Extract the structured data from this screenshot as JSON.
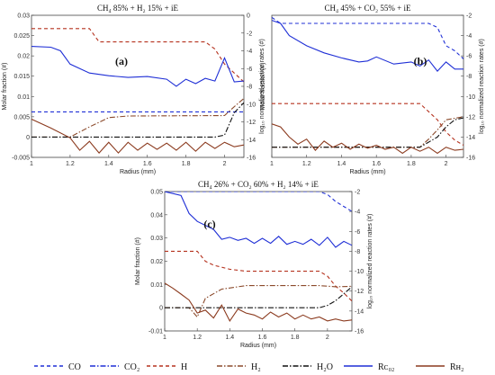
{
  "chart_data": [
    {
      "type": "line",
      "id": "a",
      "panel_label": "(a)",
      "title": "CH₄ 85% + H₂ 15% + iE",
      "xlabel": "Radius (mm)",
      "ylabel": "Molar fraction (#)",
      "y2label": "log₁₀ normalized reaction rates (#)",
      "xlim": [
        1,
        2.1
      ],
      "ylim": [
        -0.005,
        0.03
      ],
      "y2lim": [
        -16,
        0
      ],
      "xticks": [
        "1",
        "1.2",
        "1.4",
        "1.6",
        "1.8",
        "2"
      ],
      "yticks": [
        "0.03",
        "0.025",
        "0.02",
        "0.015",
        "0.01",
        "0.005",
        "0",
        "-0.005"
      ],
      "y2ticks": [
        "0",
        "-2",
        "-4",
        "-6",
        "-8",
        "-10",
        "-12",
        "-14",
        "-16"
      ],
      "series": [
        {
          "key": "CO",
          "axis": "left",
          "points": [
            [
              1,
              0.0062
            ],
            [
              2.1,
              0.0062
            ]
          ]
        },
        {
          "key": "H",
          "axis": "right",
          "points": [
            [
              1,
              -1.5
            ],
            [
              1.3,
              -1.5
            ],
            [
              1.35,
              -3.0
            ],
            [
              1.9,
              -3.0
            ],
            [
              1.95,
              -3.8
            ],
            [
              2.0,
              -5.5
            ],
            [
              2.1,
              -7.5
            ]
          ]
        },
        {
          "key": "H2",
          "axis": "left",
          "points": [
            [
              1,
              0
            ],
            [
              1.2,
              0
            ],
            [
              1.3,
              0.0025
            ],
            [
              1.4,
              0.0048
            ],
            [
              1.5,
              0.0052
            ],
            [
              2.0,
              0.0053
            ],
            [
              2.05,
              0.0075
            ],
            [
              2.1,
              0.0095
            ]
          ]
        },
        {
          "key": "H2O",
          "axis": "left",
          "points": [
            [
              1,
              0
            ],
            [
              1.95,
              0
            ],
            [
              2.0,
              0.0005
            ],
            [
              2.05,
              0.006
            ],
            [
              2.1,
              0.0085
            ]
          ]
        },
        {
          "key": "RCO2",
          "axis": "right",
          "points": [
            [
              1,
              -3.5
            ],
            [
              1.1,
              -3.6
            ],
            [
              1.15,
              -4.0
            ],
            [
              1.2,
              -5.5
            ],
            [
              1.3,
              -6.5
            ],
            [
              1.4,
              -6.8
            ],
            [
              1.5,
              -7.0
            ],
            [
              1.6,
              -6.9
            ],
            [
              1.7,
              -7.2
            ],
            [
              1.75,
              -8.0
            ],
            [
              1.8,
              -7.2
            ],
            [
              1.85,
              -7.7
            ],
            [
              1.9,
              -7.1
            ],
            [
              1.95,
              -7.4
            ],
            [
              2.0,
              -4.8
            ],
            [
              2.05,
              -7.5
            ],
            [
              2.1,
              -7.4
            ]
          ]
        },
        {
          "key": "RH2",
          "axis": "right",
          "points": [
            [
              1,
              -11.7
            ],
            [
              1.1,
              -12.7
            ],
            [
              1.2,
              -13.8
            ],
            [
              1.25,
              -15.2
            ],
            [
              1.3,
              -14.2
            ],
            [
              1.35,
              -15.5
            ],
            [
              1.4,
              -14.3
            ],
            [
              1.45,
              -15.5
            ],
            [
              1.5,
              -14.3
            ],
            [
              1.55,
              -15.2
            ],
            [
              1.6,
              -14.4
            ],
            [
              1.65,
              -15.1
            ],
            [
              1.7,
              -14.4
            ],
            [
              1.75,
              -15.2
            ],
            [
              1.8,
              -14.3
            ],
            [
              1.85,
              -15.3
            ],
            [
              1.9,
              -14.3
            ],
            [
              1.95,
              -15.0
            ],
            [
              2.0,
              -14.3
            ],
            [
              2.05,
              -14.8
            ],
            [
              2.1,
              -14.6
            ]
          ]
        }
      ]
    },
    {
      "type": "line",
      "id": "b",
      "panel_label": "(b)",
      "title": "CH₄ 45% + CO₂ 55% + iE",
      "xlabel": "Radius (mm)",
      "ylabel": "Molar fraction (#)",
      "y2label": "log₁₀ normalized reaction rates (#)",
      "xlim": [
        1,
        2.1
      ],
      "ylim": [
        -0.002,
        0.08
      ],
      "y2lim": [
        -16,
        -2
      ],
      "xticks": [
        "1",
        "1.2",
        "1.4",
        "1.6",
        "1.8",
        "2"
      ],
      "yticks": [],
      "y2ticks": [
        "-2",
        "-4",
        "-6",
        "-8",
        "-10",
        "-12",
        "-14",
        "-16"
      ],
      "series": [
        {
          "key": "CO",
          "axis": "right",
          "points": [
            [
              1,
              -2.2
            ],
            [
              1.05,
              -2.8
            ],
            [
              1.9,
              -2.8
            ],
            [
              1.95,
              -3.2
            ],
            [
              2.0,
              -5.0
            ],
            [
              2.05,
              -5.5
            ],
            [
              2.1,
              -6.3
            ]
          ]
        },
        {
          "key": "H",
          "axis": "right",
          "points": [
            [
              1,
              -10.7
            ],
            [
              1.85,
              -10.7
            ],
            [
              1.9,
              -11.5
            ],
            [
              1.95,
              -12.3
            ],
            [
              2.0,
              -13.5
            ],
            [
              2.05,
              -14.3
            ],
            [
              2.1,
              -14.8
            ]
          ]
        },
        {
          "key": "H2",
          "axis": "right",
          "points": [
            [
              1,
              -15.0
            ],
            [
              1.85,
              -15.0
            ],
            [
              1.9,
              -14.2
            ],
            [
              1.95,
              -13.3
            ],
            [
              2.0,
              -12.3
            ],
            [
              2.1,
              -12.0
            ]
          ]
        },
        {
          "key": "H2O",
          "axis": "right",
          "points": [
            [
              1,
              -15.0
            ],
            [
              1.85,
              -15.0
            ],
            [
              1.95,
              -14.0
            ],
            [
              2.0,
              -13.0
            ],
            [
              2.05,
              -12.3
            ],
            [
              2.1,
              -12.1
            ]
          ]
        },
        {
          "key": "RCO2",
          "axis": "right",
          "points": [
            [
              1,
              -2.5
            ],
            [
              1.05,
              -2.8
            ],
            [
              1.1,
              -4.0
            ],
            [
              1.2,
              -5.0
            ],
            [
              1.3,
              -5.7
            ],
            [
              1.4,
              -6.2
            ],
            [
              1.5,
              -6.6
            ],
            [
              1.55,
              -6.5
            ],
            [
              1.6,
              -6.1
            ],
            [
              1.7,
              -6.8
            ],
            [
              1.8,
              -6.6
            ],
            [
              1.85,
              -7.0
            ],
            [
              1.9,
              -6.4
            ],
            [
              1.95,
              -7.5
            ],
            [
              2.0,
              -6.6
            ],
            [
              2.05,
              -7.3
            ],
            [
              2.1,
              -7.3
            ]
          ]
        },
        {
          "key": "RH2",
          "axis": "right",
          "points": [
            [
              1,
              -12.7
            ],
            [
              1.05,
              -13.0
            ],
            [
              1.1,
              -14.0
            ],
            [
              1.15,
              -14.7
            ],
            [
              1.2,
              -14.2
            ],
            [
              1.25,
              -15.3
            ],
            [
              1.3,
              -14.4
            ],
            [
              1.35,
              -15.0
            ],
            [
              1.4,
              -14.6
            ],
            [
              1.45,
              -15.2
            ],
            [
              1.5,
              -14.7
            ],
            [
              1.55,
              -15.1
            ],
            [
              1.6,
              -14.8
            ],
            [
              1.65,
              -15.2
            ],
            [
              1.7,
              -15.0
            ],
            [
              1.75,
              -15.6
            ],
            [
              1.8,
              -15.0
            ],
            [
              1.85,
              -15.4
            ],
            [
              1.9,
              -15.0
            ],
            [
              1.95,
              -15.6
            ],
            [
              2.0,
              -15.0
            ],
            [
              2.05,
              -15.3
            ],
            [
              2.1,
              -15.2
            ]
          ]
        }
      ]
    },
    {
      "type": "line",
      "id": "c",
      "panel_label": "(c)",
      "title": "CH₄ 26% + CO₂ 60% + H₂ 14% + iE",
      "xlabel": "Radius (mm)",
      "ylabel": "Molar fraction (#)",
      "y2label": "log₁₀ normalized reaction rates (#)",
      "xlim": [
        1,
        2.15
      ],
      "ylim": [
        -0.01,
        0.05
      ],
      "y2lim": [
        -16,
        -2
      ],
      "xticks": [
        "1",
        "1.2",
        "1.4",
        "1.6",
        "1.8",
        "2"
      ],
      "yticks": [
        "0.05",
        "0.04",
        "0.03",
        "0.02",
        "0.01",
        "0",
        "-0.01"
      ],
      "y2ticks": [
        "-2",
        "-4",
        "-6",
        "-8",
        "-10",
        "-12",
        "-14",
        "-16"
      ],
      "series": [
        {
          "key": "CO",
          "axis": "right",
          "points": [
            [
              1,
              -2.0
            ],
            [
              1.95,
              -2.0
            ],
            [
              2.0,
              -2.3
            ],
            [
              2.05,
              -3.0
            ],
            [
              2.1,
              -3.5
            ],
            [
              2.15,
              -4.0
            ]
          ]
        },
        {
          "key": "H",
          "axis": "right",
          "points": [
            [
              1,
              -8.0
            ],
            [
              1.2,
              -8.0
            ],
            [
              1.25,
              -9.0
            ],
            [
              1.3,
              -9.4
            ],
            [
              1.4,
              -9.8
            ],
            [
              1.5,
              -10.0
            ],
            [
              1.95,
              -10.0
            ],
            [
              2.0,
              -10.5
            ],
            [
              2.05,
              -11.5
            ],
            [
              2.1,
              -12.2
            ],
            [
              2.15,
              -13.0
            ]
          ]
        },
        {
          "key": "H2",
          "axis": "left",
          "points": [
            [
              1,
              0
            ],
            [
              1.15,
              0
            ],
            [
              1.2,
              -0.004
            ],
            [
              1.25,
              0.004
            ],
            [
              1.35,
              0.008
            ],
            [
              1.45,
              0.009
            ],
            [
              1.5,
              0.0095
            ],
            [
              1.95,
              0.0095
            ],
            [
              2.05,
              0.009
            ],
            [
              2.15,
              0.0092
            ]
          ]
        },
        {
          "key": "H2O",
          "axis": "left",
          "points": [
            [
              1,
              0
            ],
            [
              1.95,
              0
            ],
            [
              2.0,
              0.001
            ],
            [
              2.05,
              0.003
            ],
            [
              2.1,
              0.006
            ],
            [
              2.15,
              0.009
            ]
          ]
        },
        {
          "key": "RCO2",
          "axis": "right",
          "points": [
            [
              1,
              -2.0
            ],
            [
              1.1,
              -2.4
            ],
            [
              1.15,
              -4.2
            ],
            [
              1.2,
              -5.0
            ],
            [
              1.3,
              -5.8
            ],
            [
              1.35,
              -6.8
            ],
            [
              1.4,
              -6.6
            ],
            [
              1.45,
              -6.9
            ],
            [
              1.5,
              -6.7
            ],
            [
              1.55,
              -7.2
            ],
            [
              1.6,
              -6.7
            ],
            [
              1.65,
              -7.2
            ],
            [
              1.7,
              -6.5
            ],
            [
              1.75,
              -7.3
            ],
            [
              1.8,
              -7.0
            ],
            [
              1.85,
              -7.3
            ],
            [
              1.9,
              -6.8
            ],
            [
              1.95,
              -7.4
            ],
            [
              2.0,
              -6.6
            ],
            [
              2.05,
              -7.6
            ],
            [
              2.1,
              -7.0
            ],
            [
              2.15,
              -7.4
            ]
          ]
        },
        {
          "key": "RH2",
          "axis": "right",
          "points": [
            [
              1,
              -11.2
            ],
            [
              1.05,
              -11.7
            ],
            [
              1.1,
              -12.3
            ],
            [
              1.15,
              -12.9
            ],
            [
              1.2,
              -14.2
            ],
            [
              1.25,
              -13.9
            ],
            [
              1.3,
              -14.7
            ],
            [
              1.35,
              -13.4
            ],
            [
              1.4,
              -15.0
            ],
            [
              1.45,
              -13.8
            ],
            [
              1.5,
              -14.2
            ],
            [
              1.55,
              -14.4
            ],
            [
              1.6,
              -14.8
            ],
            [
              1.65,
              -14.1
            ],
            [
              1.7,
              -14.6
            ],
            [
              1.75,
              -14.2
            ],
            [
              1.8,
              -14.8
            ],
            [
              1.85,
              -14.4
            ],
            [
              1.9,
              -14.8
            ],
            [
              1.95,
              -14.6
            ],
            [
              2.0,
              -15.0
            ],
            [
              2.05,
              -14.8
            ],
            [
              2.1,
              -15.0
            ],
            [
              2.15,
              -14.9
            ]
          ]
        }
      ]
    }
  ],
  "legend": [
    {
      "key": "CO",
      "label": "CO",
      "color": "#1f2fd6",
      "dash": "4,3"
    },
    {
      "key": "CO2",
      "label": "CO₂",
      "color": "#1f2fd6",
      "dash": "6,2,1.5,2"
    },
    {
      "key": "H",
      "label": "H",
      "color": "#b5321e",
      "dash": "4,3"
    },
    {
      "key": "H2",
      "label": "H₂",
      "color": "#8b4a2b",
      "dash": "6,2,1.5,2"
    },
    {
      "key": "H2O",
      "label": "H₂O",
      "color": "#111111",
      "dash": "6,2,1.5,2"
    },
    {
      "key": "RCO2",
      "label": "Rᴄ₀₂",
      "color": "#1f2fd6",
      "dash": ""
    },
    {
      "key": "RH2",
      "label": "Rʜ₂",
      "color": "#8b3a1e",
      "dash": ""
    }
  ]
}
